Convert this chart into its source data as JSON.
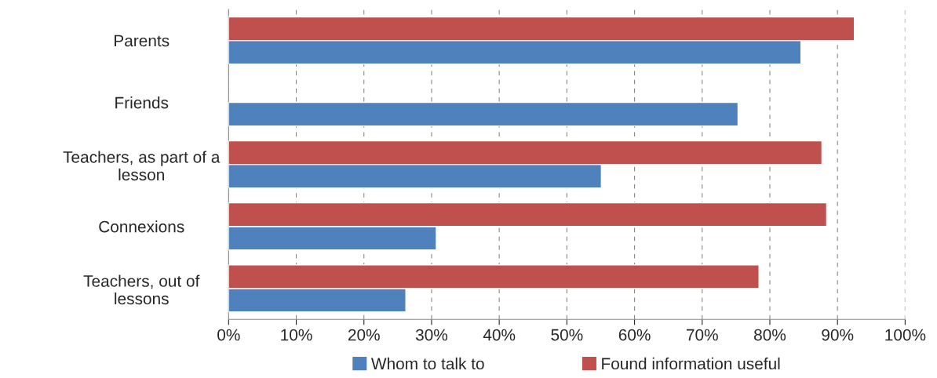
{
  "chart_data": {
    "type": "bar",
    "orientation": "horizontal",
    "categories": [
      "Parents",
      "Friends",
      "Teachers, as part of a\nlesson",
      "Connexions",
      "Teachers, out of\nlessons"
    ],
    "series": [
      {
        "name": "Whom to talk to",
        "color": "#4f81bd",
        "values": [
          84.6,
          75.3,
          55.1,
          30.7,
          26.2
        ]
      },
      {
        "name": "Found information useful",
        "color": "#c0504d",
        "values": [
          92.5,
          null,
          87.7,
          88.4,
          78.4
        ]
      }
    ],
    "xlim": [
      0,
      100
    ],
    "xticks": [
      {
        "value": 0,
        "label": "0%"
      },
      {
        "value": 10,
        "label": "10%"
      },
      {
        "value": 20,
        "label": "20%"
      },
      {
        "value": 30,
        "label": "30%"
      },
      {
        "value": 40,
        "label": "40%"
      },
      {
        "value": 50,
        "label": "50%"
      },
      {
        "value": 60,
        "label": "60%"
      },
      {
        "value": 70,
        "label": "70%"
      },
      {
        "value": 80,
        "label": "80%"
      },
      {
        "value": 90,
        "label": "90%"
      },
      {
        "value": 100,
        "label": "100%"
      }
    ],
    "grid": "x",
    "line_style": "dashed",
    "legend": "bottom"
  }
}
